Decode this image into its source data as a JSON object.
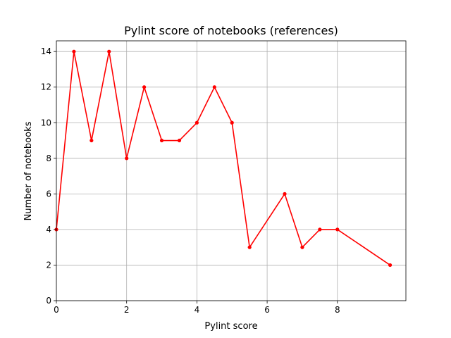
{
  "chart_data": {
    "type": "line",
    "title": "Pylint score of notebooks (references)",
    "xlabel": "Pylint score",
    "ylabel": "Number of notebooks",
    "xlim": [
      0,
      9.95
    ],
    "ylim": [
      0,
      14.6
    ],
    "xticks": [
      0,
      2,
      4,
      6,
      8
    ],
    "yticks": [
      0,
      2,
      4,
      6,
      8,
      10,
      12,
      14
    ],
    "grid": true,
    "series": [
      {
        "color": "#ff0000",
        "marker": "circle",
        "x": [
          0,
          0.5,
          1,
          1.5,
          2,
          2.5,
          3,
          3.5,
          4,
          4.5,
          5,
          5.5,
          6.5,
          7,
          7.5,
          8,
          9.5
        ],
        "y": [
          4,
          14,
          9,
          14,
          8,
          12,
          9,
          9,
          10,
          12,
          10,
          3,
          6,
          3,
          4,
          4,
          2
        ]
      }
    ]
  }
}
